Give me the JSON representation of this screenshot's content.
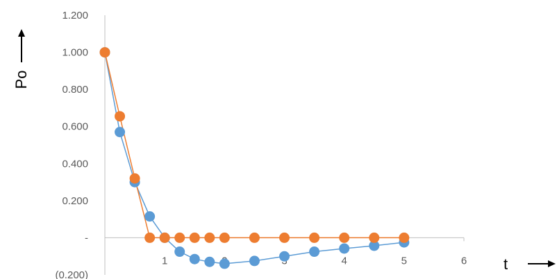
{
  "chart_data": {
    "type": "scatter",
    "title": "",
    "xlabel": "t",
    "ylabel": "Po",
    "xlim": [
      0,
      6
    ],
    "ylim": [
      -0.2,
      1.2
    ],
    "x_ticks": [
      "",
      "1",
      "2",
      "3",
      "4",
      "5",
      "6"
    ],
    "y_ticks": [
      "(0.200)",
      "-",
      "0.200",
      "0.400",
      "0.600",
      "0.800",
      "1.000",
      "1.200"
    ],
    "y_tick_values": [
      -0.2,
      0,
      0.2,
      0.4,
      0.6,
      0.8,
      1.0,
      1.2
    ],
    "grid": false,
    "legend": "none",
    "series": [
      {
        "color": "#5b9bd5",
        "x": [
          0,
          0.25,
          0.5,
          0.75,
          1.0,
          1.25,
          1.5,
          1.75,
          2.0,
          2.5,
          3.0,
          3.5,
          4.0,
          4.5,
          5.0
        ],
        "y": [
          1.0,
          0.57,
          0.3,
          0.115,
          0.0,
          -0.075,
          -0.115,
          -0.13,
          -0.14,
          -0.125,
          -0.1,
          -0.075,
          -0.058,
          -0.043,
          -0.025
        ]
      },
      {
        "color": "#ed7d31",
        "x": [
          0,
          0.25,
          0.5,
          0.75,
          1.0,
          1.25,
          1.5,
          1.75,
          2.0,
          2.5,
          3.0,
          3.5,
          4.0,
          4.5,
          5.0
        ],
        "y": [
          1.0,
          0.655,
          0.32,
          0.0,
          0.0,
          0.0,
          0.0,
          0.0,
          0.0,
          0.0,
          0.0,
          0.0,
          0.0,
          0.0,
          0.0
        ]
      }
    ],
    "axis_color": "#bfbfbf"
  }
}
